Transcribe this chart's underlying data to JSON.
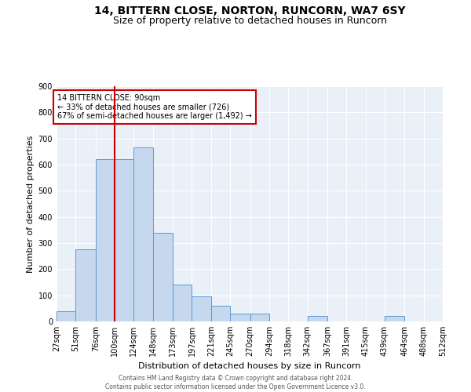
{
  "title": "14, BITTERN CLOSE, NORTON, RUNCORN, WA7 6SY",
  "subtitle": "Size of property relative to detached houses in Runcorn",
  "xlabel": "Distribution of detached houses by size in Runcorn",
  "ylabel": "Number of detached properties",
  "bar_color": "#c5d8ee",
  "bar_edge_color": "#5b9bd5",
  "background_color": "#eaf0f8",
  "grid_color": "#ffffff",
  "annotation_text": "14 BITTERN CLOSE: 90sqm\n← 33% of detached houses are smaller (726)\n67% of semi-detached houses are larger (1,492) →",
  "red_line_x": 100,
  "bins": [
    27,
    51,
    76,
    100,
    124,
    148,
    173,
    197,
    221,
    245,
    270,
    294,
    318,
    342,
    367,
    391,
    415,
    439,
    464,
    488,
    512
  ],
  "counts": [
    40,
    275,
    620,
    620,
    665,
    340,
    140,
    95,
    60,
    30,
    30,
    0,
    0,
    20,
    0,
    0,
    0,
    20,
    0,
    0,
    0
  ],
  "ylim": [
    0,
    900
  ],
  "yticks": [
    0,
    100,
    200,
    300,
    400,
    500,
    600,
    700,
    800,
    900
  ],
  "tick_labels": [
    "27sqm",
    "51sqm",
    "76sqm",
    "100sqm",
    "124sqm",
    "148sqm",
    "173sqm",
    "197sqm",
    "221sqm",
    "245sqm",
    "270sqm",
    "294sqm",
    "318sqm",
    "342sqm",
    "367sqm",
    "391sqm",
    "415sqm",
    "439sqm",
    "464sqm",
    "488sqm",
    "512sqm"
  ],
  "footer_text": "Contains HM Land Registry data © Crown copyright and database right 2024.\nContains public sector information licensed under the Open Government Licence v3.0.",
  "title_fontsize": 10,
  "subtitle_fontsize": 9,
  "axis_label_fontsize": 8,
  "tick_fontsize": 7
}
